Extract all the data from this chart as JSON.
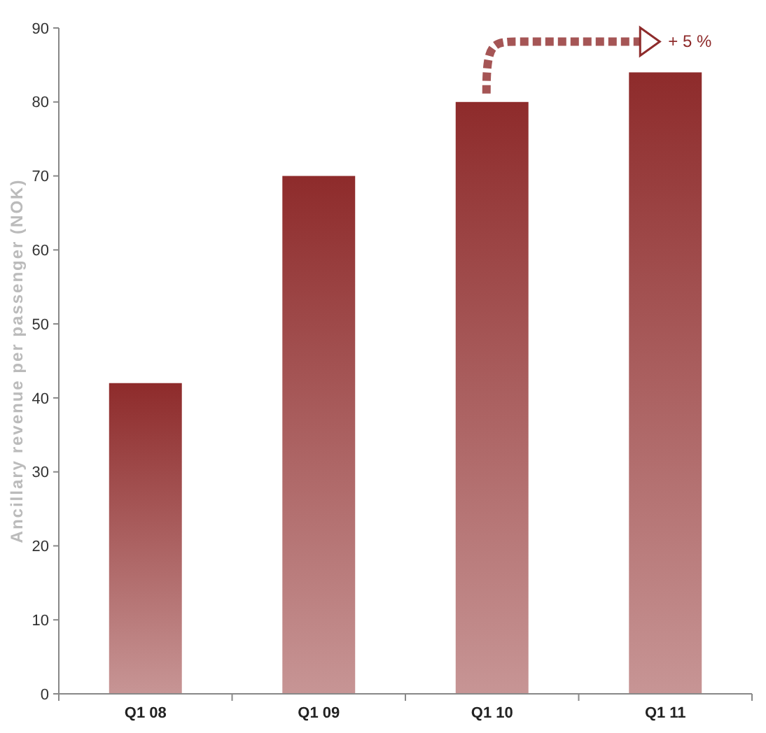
{
  "chart_data": {
    "type": "bar",
    "ylabel": "Ancillary revenue per passenger (NOK)",
    "categories": [
      "Q1 08",
      "Q1 09",
      "Q1 10",
      "Q1 11"
    ],
    "values": [
      42,
      70,
      80,
      84
    ],
    "color": "#8e2b2b",
    "ylim": [
      0,
      90
    ],
    "yticks": [
      0,
      10,
      20,
      30,
      40,
      50,
      60,
      70,
      80,
      90
    ],
    "grid": false,
    "annotations": [
      "+ 5 %"
    ]
  }
}
